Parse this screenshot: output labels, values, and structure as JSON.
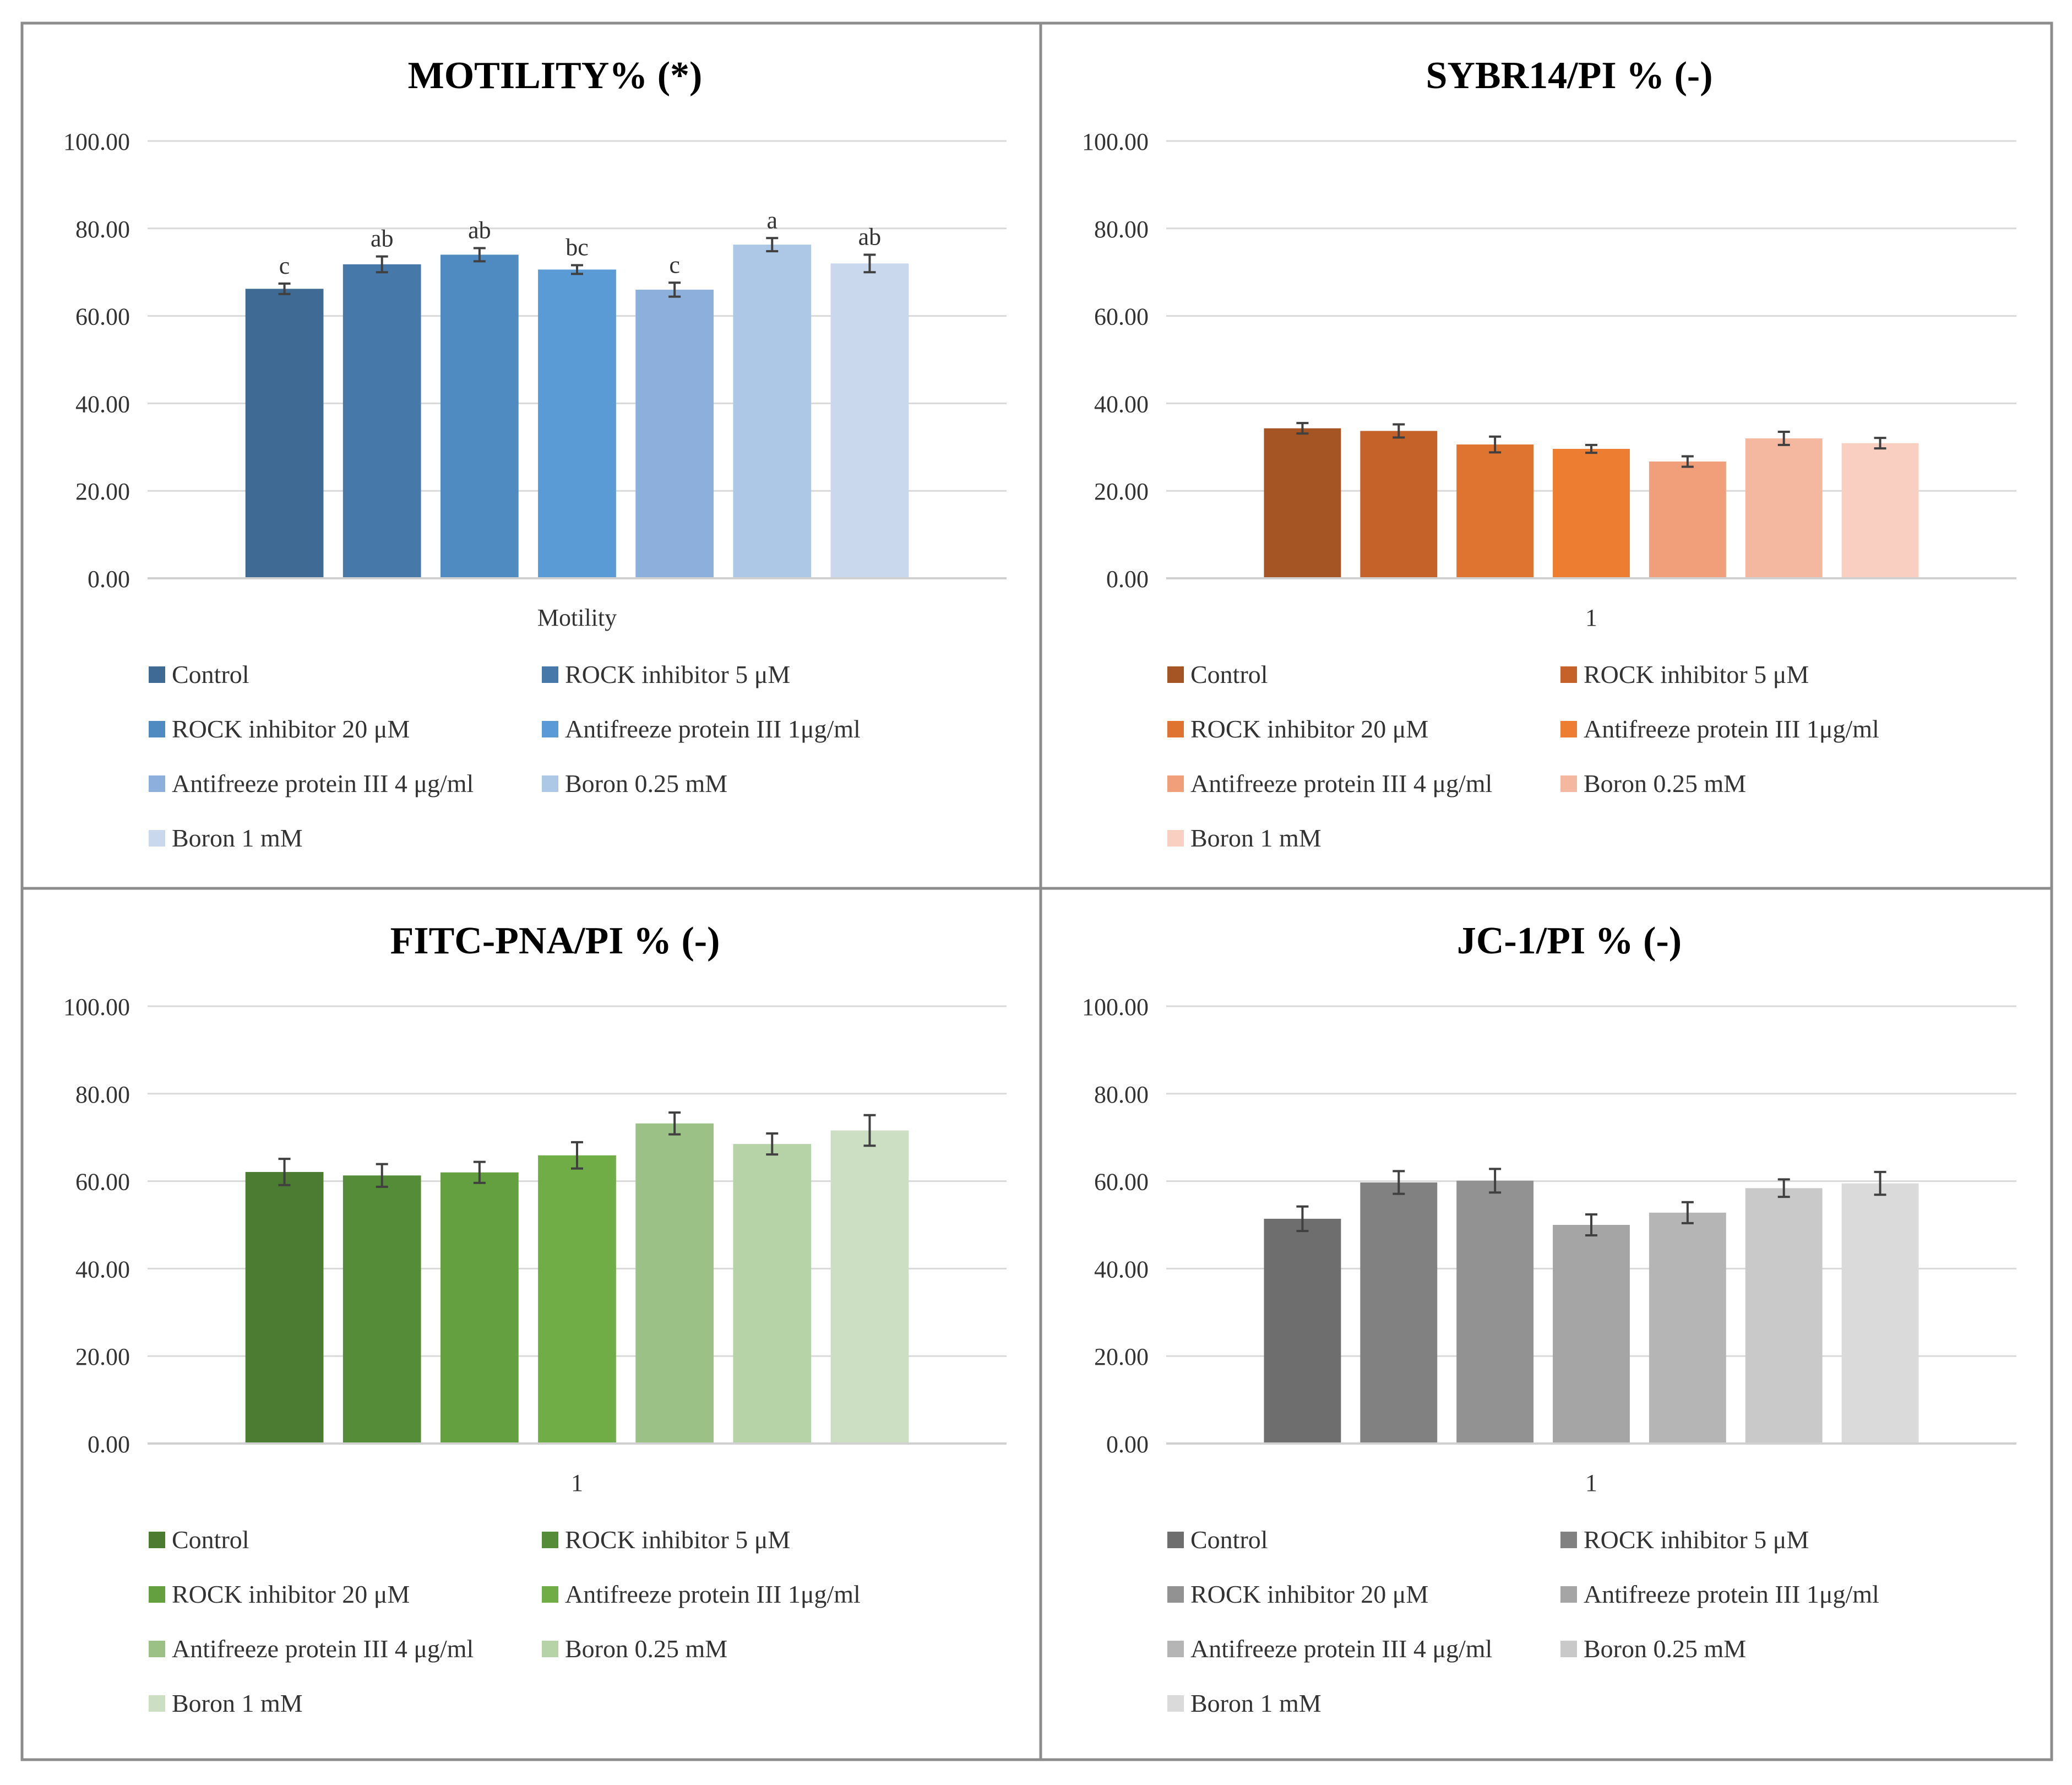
{
  "legend_labels": [
    "Control",
    "ROCK inhibitor 5 μM",
    "ROCK inhibitor 20 μM",
    "Antifreeze protein III 1μg/ml",
    "Antifreeze protein III 4 μg/ml",
    "Boron 0.25 mM",
    "Boron 1 mM"
  ],
  "chart_data": [
    {
      "type": "bar",
      "title": "MOTILITY% (*)",
      "xlabel": "Motility",
      "categories": [
        "Motility"
      ],
      "ylim": [
        0,
        100
      ],
      "yticks": [
        "0.00",
        "20.00",
        "40.00",
        "60.00",
        "80.00",
        "100.00"
      ],
      "grid": true,
      "legend": "bottom",
      "series": [
        {
          "name": "Control",
          "values": [
            66.2
          ],
          "error": 1.2,
          "label": "c",
          "color": "#3e6a94"
        },
        {
          "name": "ROCK inhibitor 5 μM",
          "values": [
            71.8
          ],
          "error": 1.8,
          "label": "ab",
          "color": "#4679aa"
        },
        {
          "name": "ROCK inhibitor 20 μM",
          "values": [
            74.0
          ],
          "error": 1.5,
          "label": "ab",
          "color": "#4f8ac1"
        },
        {
          "name": "Antifreeze protein III 1μg/ml",
          "values": [
            70.6
          ],
          "error": 1.0,
          "label": "bc",
          "color": "#5b9bd5"
        },
        {
          "name": "Antifreeze protein III 4 μg/ml",
          "values": [
            66.0
          ],
          "error": 1.6,
          "label": "c",
          "color": "#8cb0db"
        },
        {
          "name": "Boron 0.25 mM",
          "values": [
            76.3
          ],
          "error": 1.5,
          "label": "a",
          "color": "#adc7e6"
        },
        {
          "name": "Boron 1 mM",
          "values": [
            72.0
          ],
          "error": 2.0,
          "label": "ab",
          "color": "#c9d8ed"
        }
      ]
    },
    {
      "type": "bar",
      "title": "SYBR14/PI % (-)",
      "xlabel": "1",
      "categories": [
        "1"
      ],
      "ylim": [
        0,
        100
      ],
      "yticks": [
        "0.00",
        "20.00",
        "40.00",
        "60.00",
        "80.00",
        "100.00"
      ],
      "grid": true,
      "legend": "bottom",
      "series": [
        {
          "name": "Control",
          "values": [
            34.3
          ],
          "error": 1.2,
          "color": "#a55524"
        },
        {
          "name": "ROCK inhibitor 5 μM",
          "values": [
            33.7
          ],
          "error": 1.5,
          "color": "#c4622a"
        },
        {
          "name": "ROCK inhibitor 20 μM",
          "values": [
            30.6
          ],
          "error": 1.8,
          "color": "#df7330"
        },
        {
          "name": "Antifreeze protein III 1μg/ml",
          "values": [
            29.6
          ],
          "error": 0.9,
          "color": "#ed7d31"
        },
        {
          "name": "Antifreeze protein III 4 μg/ml",
          "values": [
            26.7
          ],
          "error": 1.2,
          "color": "#f09f7a"
        },
        {
          "name": "Boron 0.25 mM",
          "values": [
            32.0
          ],
          "error": 1.5,
          "color": "#f4b7a0"
        },
        {
          "name": "Boron 1 mM",
          "values": [
            30.9
          ],
          "error": 1.2,
          "color": "#f8cfc0"
        }
      ]
    },
    {
      "type": "bar",
      "title": "FITC-PNA/PI  % (-)",
      "xlabel": "1",
      "categories": [
        "1"
      ],
      "ylim": [
        0,
        100
      ],
      "yticks": [
        "0.00",
        "20.00",
        "40.00",
        "60.00",
        "80.00",
        "100.00"
      ],
      "grid": true,
      "legend": "bottom",
      "series": [
        {
          "name": "Control",
          "values": [
            62.1
          ],
          "error": 3.0,
          "color": "#4b7c31"
        },
        {
          "name": "ROCK inhibitor 5 μM",
          "values": [
            61.3
          ],
          "error": 2.6,
          "color": "#548c38"
        },
        {
          "name": "ROCK inhibitor 20 μM",
          "values": [
            62.0
          ],
          "error": 2.4,
          "color": "#65a040"
        },
        {
          "name": "Antifreeze protein III 1μg/ml",
          "values": [
            65.9
          ],
          "error": 3.0,
          "color": "#70ad47"
        },
        {
          "name": "Antifreeze protein III 4 μg/ml",
          "values": [
            73.2
          ],
          "error": 2.5,
          "color": "#9bc186"
        },
        {
          "name": "Boron 0.25 mM",
          "values": [
            68.5
          ],
          "error": 2.4,
          "color": "#b6d3a8"
        },
        {
          "name": "Boron 1 mM",
          "values": [
            71.6
          ],
          "error": 3.5,
          "color": "#cddfc3"
        }
      ]
    },
    {
      "type": "bar",
      "title": "JC-1/PI   % (-)",
      "xlabel": "1",
      "categories": [
        "1"
      ],
      "ylim": [
        0,
        100
      ],
      "yticks": [
        "0.00",
        "20.00",
        "40.00",
        "60.00",
        "80.00",
        "100.00"
      ],
      "grid": true,
      "legend": "bottom",
      "series": [
        {
          "name": "Control",
          "values": [
            51.4
          ],
          "error": 2.8,
          "color": "#6e6e6e"
        },
        {
          "name": "ROCK inhibitor 5 μM",
          "values": [
            59.7
          ],
          "error": 2.6,
          "color": "#818181"
        },
        {
          "name": "ROCK inhibitor 20 μM",
          "values": [
            60.1
          ],
          "error": 2.7,
          "color": "#929292"
        },
        {
          "name": "Antifreeze protein III 1μg/ml",
          "values": [
            50.0
          ],
          "error": 2.4,
          "color": "#a5a5a5"
        },
        {
          "name": "Antifreeze protein III 4 μg/ml",
          "values": [
            52.8
          ],
          "error": 2.4,
          "color": "#b5b5b5"
        },
        {
          "name": "Boron 0.25 mM",
          "values": [
            58.4
          ],
          "error": 2.0,
          "color": "#c9c9c9"
        },
        {
          "name": "Boron 1 mM",
          "values": [
            59.5
          ],
          "error": 2.6,
          "color": "#dadada"
        }
      ]
    }
  ]
}
